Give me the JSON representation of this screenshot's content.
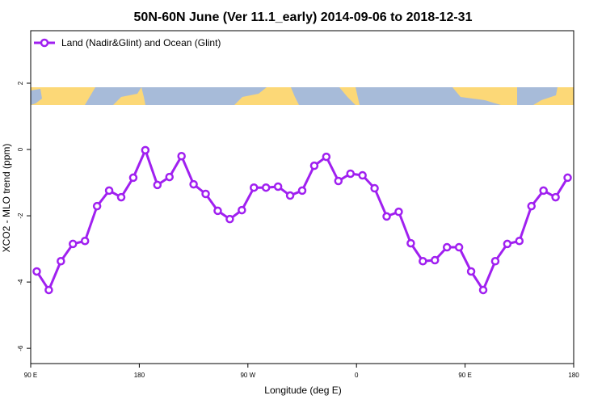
{
  "chart_data": {
    "type": "line",
    "title": "50N-60N June (Ver 11.1_early)   2014-09-06 to 2018-12-31",
    "x_label": "Longitude (deg E)",
    "y_label": "XCO2 - MLO trend (ppm)",
    "x": [
      95,
      105,
      115,
      125,
      135,
      145,
      155,
      165,
      175,
      185,
      195,
      205,
      215,
      225,
      235,
      245,
      255,
      265,
      275,
      285,
      295,
      305,
      315,
      325,
      335,
      345,
      355,
      365,
      375,
      385,
      395,
      405,
      415,
      425,
      435,
      445,
      455,
      465,
      475,
      485,
      495,
      505,
      515,
      525,
      535
    ],
    "series": [
      {
        "name": "Land (Nadir&Glint) and Ocean (Glint)",
        "color": "#a020f0",
        "values": [
          -3.68,
          -4.24,
          -3.37,
          -2.85,
          -2.76,
          -1.71,
          -1.24,
          -1.44,
          -0.85,
          -0.02,
          -1.07,
          -0.83,
          -0.2,
          -1.05,
          -1.34,
          -1.85,
          -2.1,
          -1.83,
          -1.15,
          -1.15,
          -1.12,
          -1.39,
          -1.24,
          -0.49,
          -0.22,
          -0.95,
          -0.73,
          -0.78,
          -1.17,
          -2.02,
          -1.88,
          -2.83,
          -3.37,
          -3.34,
          -2.95,
          -2.95,
          -3.68,
          -4.24,
          -3.37,
          -2.85,
          -2.76,
          -1.71,
          -1.24,
          -1.44,
          -0.85
        ]
      }
    ],
    "xlim": [
      90,
      540
    ],
    "xticks": [
      {
        "value": 90,
        "label": "90 E"
      },
      {
        "value": 180,
        "label": "180"
      },
      {
        "value": 270,
        "label": "90 W"
      },
      {
        "value": 360,
        "label": "0"
      },
      {
        "value": 450,
        "label": "90 E"
      },
      {
        "value": 540,
        "label": "180"
      }
    ],
    "ylim": [
      -6.46,
      3.585
    ],
    "yticks": [
      2,
      0,
      -2,
      -4,
      -6
    ],
    "legend": "top-left"
  }
}
